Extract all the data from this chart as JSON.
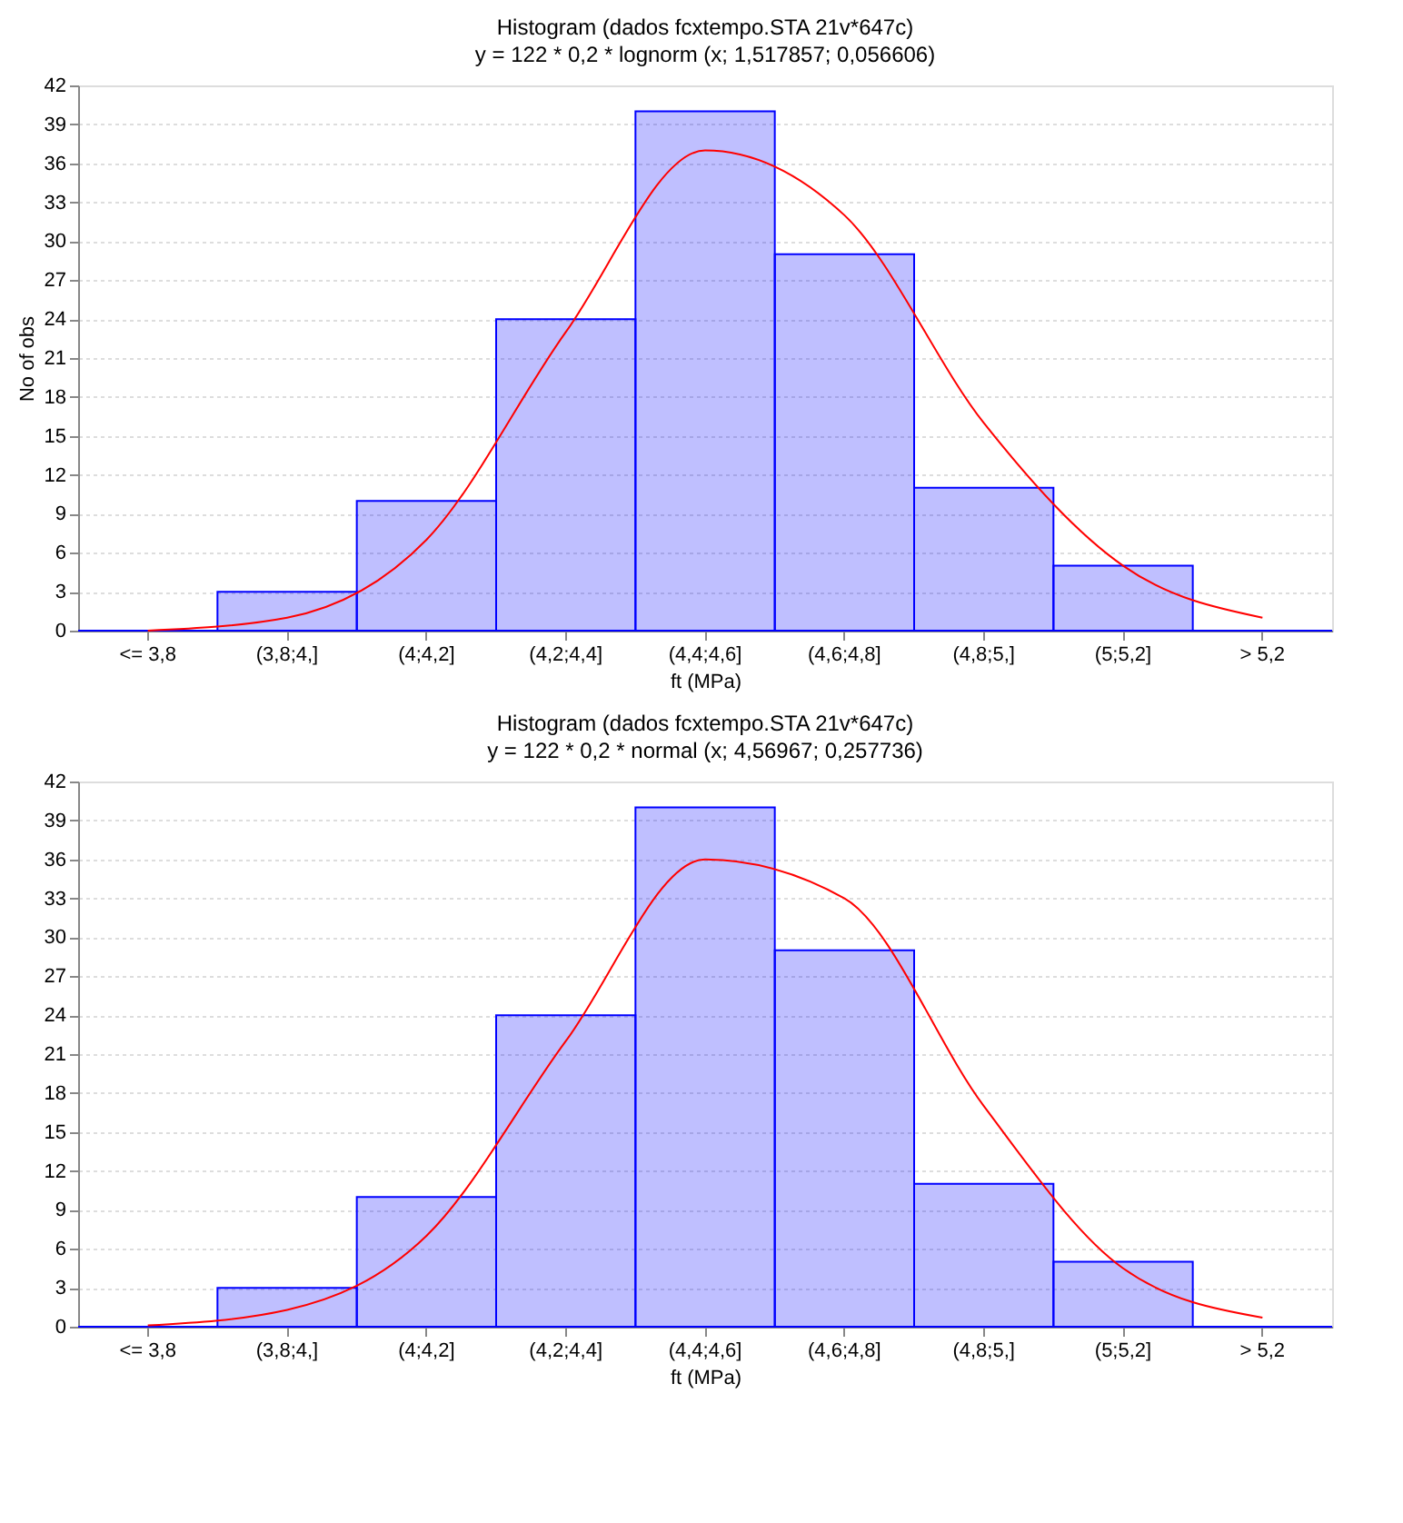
{
  "chart_data": [
    {
      "type": "bar",
      "title": "Histogram (dados fcxtempo.STA 21v*647c)",
      "subtitle": "y = 122 * 0,2 * lognorm (x; 1,517857; 0,056606)",
      "xlabel": "ft (MPa)",
      "ylabel": "No of obs",
      "categories": [
        "<= 3,8",
        "(3,8;4,]",
        "(4;4,2]",
        "(4,2;4,4]",
        "(4,4;4,6]",
        "(4,6;4,8]",
        "(4,8;5,]",
        "(5;5,2]",
        "> 5,2"
      ],
      "series": [
        {
          "color": "#0000ff",
          "values": [
            0,
            3,
            10,
            24,
            40,
            29,
            11,
            5,
            0
          ]
        },
        {
          "type": "line",
          "color": "#ff0000",
          "values": [
            0,
            1,
            7,
            23,
            37,
            32,
            16,
            5,
            1
          ]
        }
      ],
      "ylim": [
        0,
        42
      ],
      "yticks": [
        0,
        3,
        6,
        9,
        12,
        15,
        18,
        21,
        24,
        27,
        30,
        33,
        36,
        39,
        42
      ],
      "grid": "y"
    },
    {
      "type": "bar",
      "title": "Histogram (dados fcxtempo.STA 21v*647c)",
      "subtitle": "y = 122 * 0,2 * normal (x; 4,56967; 0,257736)",
      "xlabel": "ft (MPa)",
      "categories": [
        "<= 3,8",
        "(3,8;4,]",
        "(4;4,2]",
        "(4,2;4,4]",
        "(4,4;4,6]",
        "(4,6;4,8]",
        "(4,8;5,]",
        "(5;5,2]",
        "> 5,2"
      ],
      "series": [
        {
          "color": "#0000ff",
          "values": [
            0,
            3,
            10,
            24,
            40,
            29,
            11,
            5,
            0
          ]
        },
        {
          "type": "line",
          "color": "#ff0000",
          "values": [
            0.1,
            1.3,
            7,
            22,
            36,
            33,
            17,
            4.5,
            0.7
          ]
        }
      ],
      "ylim": [
        0,
        42
      ],
      "yticks": [
        0,
        3,
        6,
        9,
        12,
        15,
        18,
        21,
        24,
        27,
        30,
        33,
        36,
        39,
        42
      ],
      "grid": "y"
    }
  ]
}
